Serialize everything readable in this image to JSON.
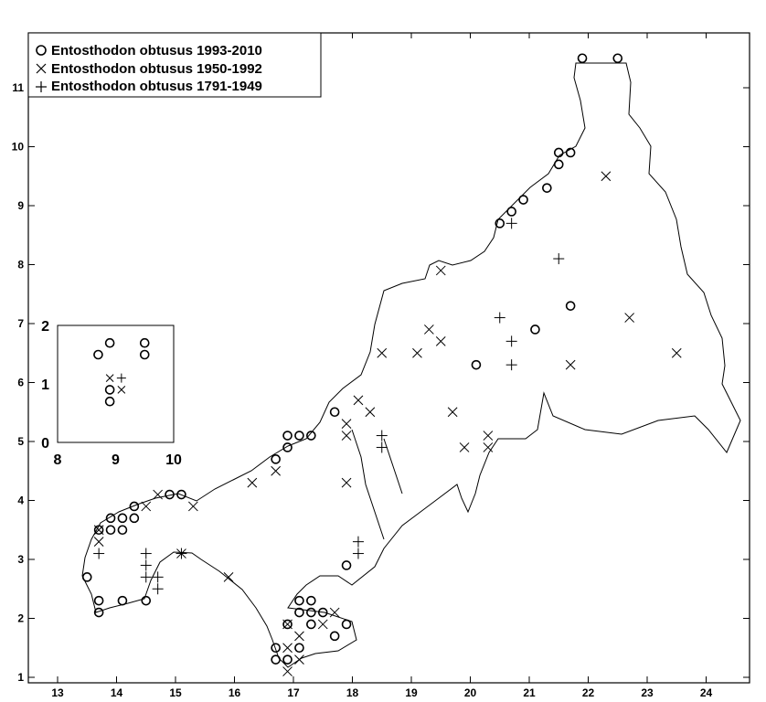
{
  "legend": {
    "items": [
      {
        "symbol": "circle",
        "label": "Entosthodon obtusus 1993-2010"
      },
      {
        "symbol": "cross",
        "label": "Entosthodon obtusus 1950-1992"
      },
      {
        "symbol": "plus",
        "label": "Entosthodon obtusus 1791-1949"
      }
    ]
  },
  "chart_data": {
    "type": "scatter",
    "xlim": [
      12.8,
      24.9
    ],
    "ylim": [
      0.9,
      12.0
    ],
    "x_ticks": [
      13,
      14,
      15,
      16,
      17,
      18,
      19,
      20,
      21,
      22,
      23,
      24
    ],
    "y_ticks": [
      1,
      2,
      3,
      4,
      5,
      6,
      7,
      8,
      9,
      10,
      11
    ],
    "series": [
      {
        "name": "Entosthodon obtusus 1993-2010",
        "marker": "circle",
        "points": [
          [
            21.9,
            11.5
          ],
          [
            22.5,
            11.5
          ],
          [
            21.5,
            9.9
          ],
          [
            21.7,
            9.9
          ],
          [
            21.5,
            9.7
          ],
          [
            21.3,
            9.3
          ],
          [
            20.9,
            9.1
          ],
          [
            20.7,
            8.9
          ],
          [
            20.5,
            8.7
          ],
          [
            21.7,
            7.3
          ],
          [
            21.1,
            6.9
          ],
          [
            20.1,
            6.3
          ],
          [
            17.7,
            5.5
          ],
          [
            16.9,
            5.1
          ],
          [
            17.1,
            5.1
          ],
          [
            17.3,
            5.1
          ],
          [
            16.9,
            4.9
          ],
          [
            16.7,
            4.7
          ],
          [
            14.9,
            4.1
          ],
          [
            15.1,
            4.1
          ],
          [
            14.3,
            3.9
          ],
          [
            13.9,
            3.7
          ],
          [
            14.1,
            3.7
          ],
          [
            14.3,
            3.7
          ],
          [
            13.7,
            3.5
          ],
          [
            13.9,
            3.5
          ],
          [
            14.1,
            3.5
          ],
          [
            17.9,
            2.9
          ],
          [
            13.5,
            2.7
          ],
          [
            13.7,
            2.3
          ],
          [
            14.1,
            2.3
          ],
          [
            14.5,
            2.3
          ],
          [
            17.1,
            2.3
          ],
          [
            17.3,
            2.3
          ],
          [
            13.7,
            2.1
          ],
          [
            17.1,
            2.1
          ],
          [
            17.3,
            2.1
          ],
          [
            17.5,
            2.1
          ],
          [
            16.9,
            1.9
          ],
          [
            17.3,
            1.9
          ],
          [
            17.9,
            1.9
          ],
          [
            17.7,
            1.7
          ],
          [
            16.7,
            1.5
          ],
          [
            17.1,
            1.5
          ],
          [
            16.7,
            1.3
          ],
          [
            16.9,
            1.3
          ]
        ]
      },
      {
        "name": "Entosthodon obtusus 1950-1992",
        "marker": "cross",
        "points": [
          [
            22.3,
            9.5
          ],
          [
            19.5,
            7.9
          ],
          [
            22.7,
            7.1
          ],
          [
            19.3,
            6.9
          ],
          [
            19.5,
            6.7
          ],
          [
            18.5,
            6.5
          ],
          [
            19.1,
            6.5
          ],
          [
            23.5,
            6.5
          ],
          [
            21.7,
            6.3
          ],
          [
            18.1,
            5.7
          ],
          [
            18.3,
            5.5
          ],
          [
            19.7,
            5.5
          ],
          [
            17.9,
            5.3
          ],
          [
            17.9,
            5.1
          ],
          [
            20.3,
            5.1
          ],
          [
            19.9,
            4.9
          ],
          [
            20.3,
            4.9
          ],
          [
            16.7,
            4.5
          ],
          [
            16.3,
            4.3
          ],
          [
            17.9,
            4.3
          ],
          [
            14.7,
            4.1
          ],
          [
            14.5,
            3.9
          ],
          [
            15.3,
            3.9
          ],
          [
            13.7,
            3.5
          ],
          [
            13.7,
            3.3
          ],
          [
            15.1,
            3.1
          ],
          [
            15.9,
            2.7
          ],
          [
            16.9,
            1.9
          ],
          [
            17.5,
            1.9
          ],
          [
            17.1,
            1.7
          ],
          [
            17.7,
            2.1
          ],
          [
            16.9,
            1.5
          ],
          [
            17.1,
            1.3
          ],
          [
            16.9,
            1.1
          ]
        ]
      },
      {
        "name": "Entosthodon obtusus 1791-1949",
        "marker": "plus",
        "points": [
          [
            21.5,
            8.1
          ],
          [
            20.7,
            8.7
          ],
          [
            20.5,
            7.1
          ],
          [
            20.7,
            6.7
          ],
          [
            20.7,
            6.3
          ],
          [
            18.5,
            5.1
          ],
          [
            18.5,
            4.9
          ],
          [
            18.1,
            3.3
          ],
          [
            18.1,
            3.1
          ],
          [
            13.7,
            3.1
          ],
          [
            14.5,
            3.1
          ],
          [
            15.1,
            3.1
          ],
          [
            14.5,
            2.9
          ],
          [
            14.5,
            2.7
          ],
          [
            14.7,
            2.7
          ],
          [
            14.7,
            2.5
          ]
        ]
      }
    ],
    "inset": {
      "x_ticks": [
        8,
        9,
        10
      ],
      "y_ticks": [
        0,
        1,
        2
      ],
      "xlim": [
        8,
        10
      ],
      "ylim": [
        0,
        2
      ],
      "circles": [
        [
          8.9,
          1.7
        ],
        [
          9.5,
          1.7
        ],
        [
          8.7,
          1.5
        ],
        [
          9.5,
          1.5
        ],
        [
          8.9,
          0.9
        ],
        [
          8.9,
          0.7
        ]
      ],
      "crosses": [
        [
          8.9,
          1.1
        ],
        [
          9.1,
          0.9
        ]
      ],
      "pluses": [
        [
          9.1,
          1.1
        ]
      ]
    }
  }
}
